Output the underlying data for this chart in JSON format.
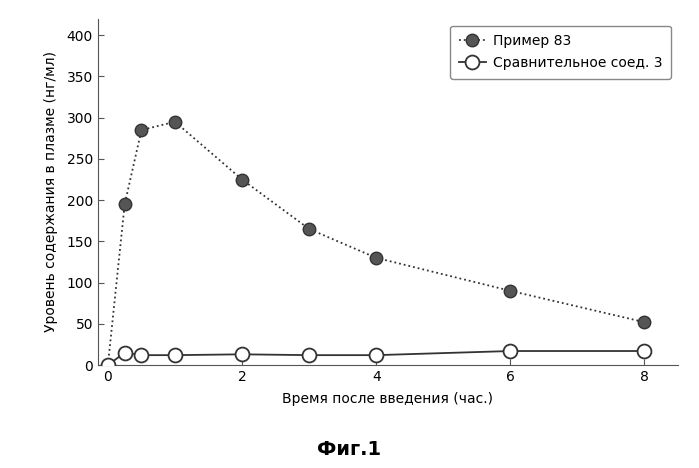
{
  "example83_x": [
    0,
    0.25,
    0.5,
    1.0,
    2.0,
    3.0,
    4.0,
    6.0,
    8.0
  ],
  "example83_y": [
    0,
    195,
    285,
    295,
    225,
    165,
    130,
    90,
    52
  ],
  "comp3_x": [
    0,
    0.25,
    0.5,
    1.0,
    2.0,
    3.0,
    4.0,
    6.0,
    8.0
  ],
  "comp3_y": [
    0,
    15,
    12,
    12,
    13,
    12,
    12,
    17,
    17
  ],
  "xlabel": "Время после введения (час.)",
  "ylabel": "Уровень содержания в плазме (нг/мл)",
  "caption": "Фиг.1",
  "legend_example83": "Пример 83",
  "legend_comp3": "Сравнительное соед. 3",
  "xlim": [
    -0.15,
    8.5
  ],
  "ylim": [
    0,
    420
  ],
  "yticks": [
    0,
    50,
    100,
    150,
    200,
    250,
    300,
    350,
    400
  ],
  "xticks": [
    0,
    2,
    4,
    6,
    8
  ],
  "background_color": "#ffffff",
  "line_color_83": "#333333",
  "line_color_comp": "#333333",
  "markersize_83": 9,
  "markersize_comp": 10,
  "linewidth_83": 1.3,
  "linewidth_comp": 1.3,
  "label_fontsize": 10,
  "tick_fontsize": 10,
  "legend_fontsize": 10,
  "caption_fontsize": 14
}
